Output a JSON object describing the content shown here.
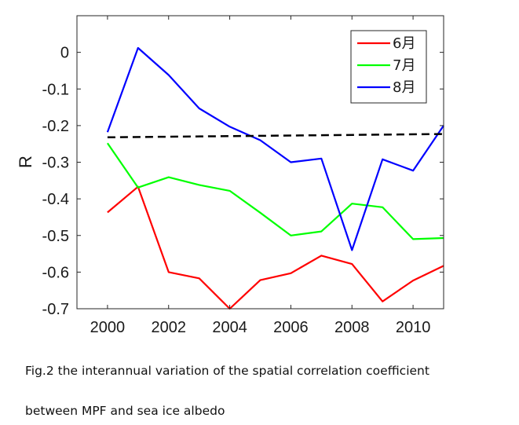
{
  "chart_data": {
    "type": "line",
    "x": [
      2000,
      2001,
      2002,
      2003,
      2004,
      2005,
      2006,
      2007,
      2008,
      2009,
      2010,
      2011
    ],
    "series": [
      {
        "name": "6月",
        "color": "#ff0000",
        "values": [
          -0.437,
          -0.367,
          -0.6,
          -0.617,
          -0.7,
          -0.622,
          -0.603,
          -0.555,
          -0.578,
          -0.68,
          -0.623,
          -0.583
        ]
      },
      {
        "name": "7月",
        "color": "#00ff00",
        "values": [
          -0.248,
          -0.369,
          -0.341,
          -0.362,
          -0.378,
          -0.438,
          -0.5,
          -0.489,
          -0.413,
          -0.423,
          -0.51,
          -0.507
        ]
      },
      {
        "name": "8月",
        "color": "#0000ff",
        "values": [
          -0.218,
          0.012,
          -0.062,
          -0.153,
          -0.203,
          -0.24,
          -0.3,
          -0.29,
          -0.54,
          -0.292,
          -0.323,
          -0.2
        ]
      }
    ],
    "trend": {
      "style": "dashed",
      "color": "#000000",
      "x": [
        2000,
        2011
      ],
      "values": [
        -0.232,
        -0.223
      ]
    },
    "xticks": [
      "2000",
      "2002",
      "2004",
      "2006",
      "2008",
      "2010"
    ],
    "yticks": [
      "0",
      "-0.1",
      "-0.2",
      "-0.3",
      "-0.4",
      "-0.5",
      "-0.6",
      "-0.7"
    ],
    "xlabel": "",
    "ylabel": "R",
    "xlim": [
      1999,
      2011
    ],
    "ylim": [
      -0.7,
      0.1
    ],
    "legend_position": "top-right",
    "grid": false
  },
  "caption": {
    "line1": "Fig.2 the interannual variation of the spatial correlation coefficient",
    "line2": "between MPF and sea ice albedo"
  }
}
